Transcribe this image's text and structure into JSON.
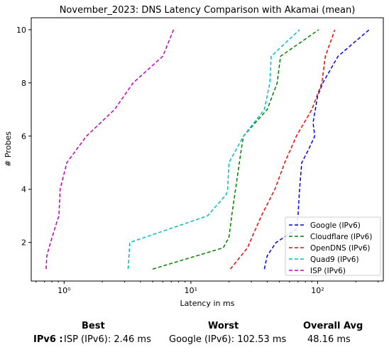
{
  "chart_data": {
    "type": "line",
    "title": "November_2023: DNS Latency Comparison with Akamai (mean)",
    "xlabel": "Latency in ms",
    "ylabel": "# Probes",
    "xscale": "log",
    "xlim": [
      0.55,
      330
    ],
    "ylim": [
      0.55,
      10.45
    ],
    "x_ticks": [
      {
        "value": 1,
        "label": "10⁰"
      },
      {
        "value": 10,
        "label": "10¹"
      },
      {
        "value": 100,
        "label": "10²"
      }
    ],
    "y_ticks": [
      2,
      4,
      6,
      8,
      10
    ],
    "legend_position": "lower-right",
    "series": [
      {
        "name": "Google (IPv6)",
        "color": "#0000ff",
        "x": [
          38,
          40,
          47,
          68,
          70,
          72,
          75,
          85,
          95,
          92,
          100,
          110,
          145,
          255
        ],
        "y": [
          1,
          1.5,
          2,
          2.5,
          3,
          4,
          5,
          5.5,
          6,
          6.5,
          7.5,
          8,
          9,
          10
        ]
      },
      {
        "name": "Cloudflare (IPv6)",
        "color": "#008000",
        "x": [
          5,
          18,
          20,
          21,
          22.5,
          25,
          26,
          40,
          48,
          51,
          102
        ],
        "y": [
          1,
          1.8,
          2.2,
          3,
          4,
          5.5,
          6,
          7,
          8,
          9,
          10
        ]
      },
      {
        "name": "OpenDNS (IPv6)",
        "color": "#ff0000",
        "x": [
          20.5,
          28,
          31,
          36,
          46,
          55,
          68,
          90,
          108,
          115,
          137
        ],
        "y": [
          1,
          1.8,
          2.3,
          3,
          4,
          5,
          6,
          7,
          8,
          9,
          10
        ]
      },
      {
        "name": "Quad9 (IPv6)",
        "color": "#00bfbf",
        "x": [
          3.2,
          3.3,
          13.5,
          19,
          19.5,
          20,
          26,
          38,
          42,
          43,
          72
        ],
        "y": [
          1,
          2,
          3,
          3.8,
          4,
          5,
          6,
          7,
          8,
          9,
          10
        ]
      },
      {
        "name": "ISP (IPv6)",
        "color": "#bf00bf",
        "x": [
          0.72,
          0.73,
          0.78,
          0.88,
          0.91,
          0.93,
          1.05,
          1.5,
          2.5,
          3.5,
          6,
          7.3
        ],
        "y": [
          1,
          1.5,
          2,
          2.8,
          3,
          4,
          5,
          6,
          7,
          8,
          9,
          10
        ]
      }
    ]
  },
  "summary": {
    "headers": {
      "best": "Best",
      "worst": "Worst",
      "overall_avg": "Overall Avg"
    },
    "row_label": "IPv6 :",
    "best": "ISP (IPv6): 2.46 ms",
    "worst": "Google (IPv6): 102.53 ms",
    "overall_avg": "48.16 ms"
  }
}
